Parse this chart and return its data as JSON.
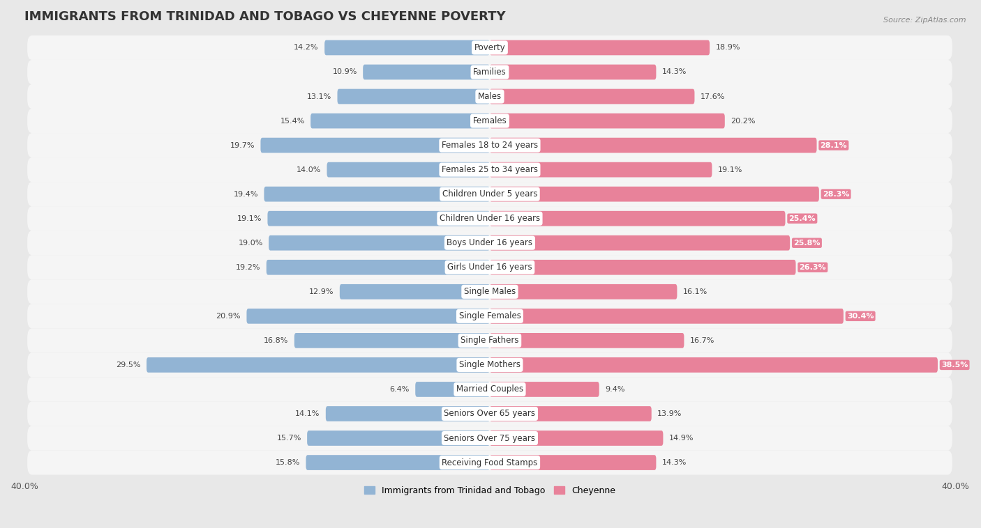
{
  "title": "IMMIGRANTS FROM TRINIDAD AND TOBAGO VS CHEYENNE POVERTY",
  "source": "Source: ZipAtlas.com",
  "categories": [
    "Poverty",
    "Families",
    "Males",
    "Females",
    "Females 18 to 24 years",
    "Females 25 to 34 years",
    "Children Under 5 years",
    "Children Under 16 years",
    "Boys Under 16 years",
    "Girls Under 16 years",
    "Single Males",
    "Single Females",
    "Single Fathers",
    "Single Mothers",
    "Married Couples",
    "Seniors Over 65 years",
    "Seniors Over 75 years",
    "Receiving Food Stamps"
  ],
  "left_values": [
    14.2,
    10.9,
    13.1,
    15.4,
    19.7,
    14.0,
    19.4,
    19.1,
    19.0,
    19.2,
    12.9,
    20.9,
    16.8,
    29.5,
    6.4,
    14.1,
    15.7,
    15.8
  ],
  "right_values": [
    18.9,
    14.3,
    17.6,
    20.2,
    28.1,
    19.1,
    28.3,
    25.4,
    25.8,
    26.3,
    16.1,
    30.4,
    16.7,
    38.5,
    9.4,
    13.9,
    14.9,
    14.3
  ],
  "left_color": "#92b4d4",
  "right_color": "#e8829a",
  "left_label": "Immigrants from Trinidad and Tobago",
  "right_label": "Cheyenne",
  "xlim": 40.0,
  "background_color": "#e8e8e8",
  "bar_bg_color": "#f5f5f5",
  "title_fontsize": 13,
  "label_fontsize": 8.5,
  "value_fontsize": 8,
  "bar_height": 0.62
}
